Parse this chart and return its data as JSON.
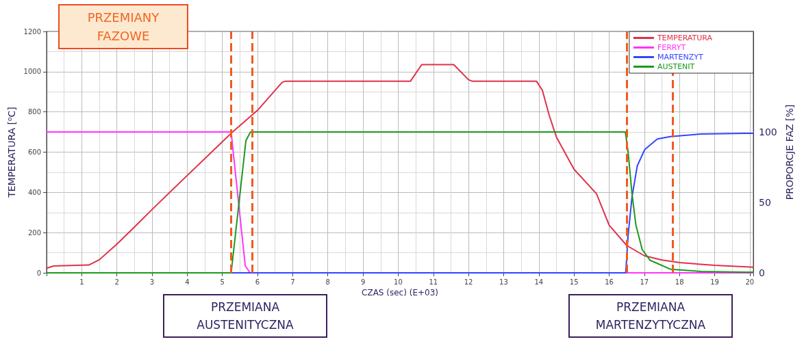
{
  "chart_data": {
    "type": "line",
    "xlabel": "CZAS (sec) (E+03)",
    "ylabel": "TEMPERATURA [$^{o}$C]",
    "y2label": "PROPORCJE FAZ [%]",
    "xlim": [
      0,
      20.1
    ],
    "xticks": [
      {
        "value": 0,
        "label": null
      },
      1,
      2,
      3,
      4,
      5,
      6,
      7,
      8,
      9,
      10,
      11,
      12,
      13,
      14,
      15,
      16,
      17,
      18,
      19,
      20
    ],
    "ylim": [
      0,
      1200
    ],
    "yticks": [
      0,
      200,
      400,
      600,
      800,
      1000,
      1200
    ],
    "y2lim": [
      0,
      171.4
    ],
    "y2ticks": [
      0,
      50,
      100
    ],
    "grid": true,
    "legend": "top right",
    "line_style": "solid",
    "marker": "none",
    "series": [
      {
        "name": "TEMPERATURA",
        "color": "#e0304a",
        "x": [
          0,
          0.2,
          0.5,
          1.2,
          1.5,
          2,
          2.5,
          3,
          4,
          5,
          5.25,
          6,
          6.7,
          6.8,
          10.35,
          10.67,
          11.58,
          12.0,
          12.1,
          13.93,
          14.1,
          14.3,
          14.5,
          15,
          15.64,
          16,
          16.5,
          17,
          17.5,
          18,
          19,
          20.1
        ],
        "values": [
          23,
          34,
          36,
          39,
          65,
          143,
          228,
          315,
          484,
          652,
          694,
          808,
          947,
          953,
          953,
          1035,
          1035,
          960,
          953,
          953,
          908,
          780,
          675,
          515,
          393,
          237,
          136,
          85,
          64,
          51,
          37,
          28
        ]
      },
      {
        "name": "FERRYT",
        "color": "#ff33ff",
        "axis": "y2",
        "x": [
          0,
          5.25,
          5.32,
          5.65,
          5.79,
          20.1
        ],
        "values": [
          100,
          100,
          83,
          5,
          0,
          0
        ]
      },
      {
        "name": "MARTENZYT",
        "color": "#3344ff",
        "axis": "y2",
        "x": [
          0,
          16.47,
          16.54,
          16.65,
          16.8,
          17.01,
          17.37,
          17.74,
          18.61,
          19.84,
          20.1
        ],
        "values": [
          0,
          0,
          27,
          54,
          76,
          87.5,
          95,
          96.7,
          98.6,
          99,
          99
        ]
      },
      {
        "name": "AUSTENIT",
        "color": "#1a9a1a",
        "axis": "y2",
        "x": [
          0,
          5.25,
          5.67,
          5.8,
          16.46,
          16.54,
          16.65,
          16.76,
          16.94,
          17.16,
          17.74,
          18.61,
          19.84,
          20.1
        ],
        "values": [
          0,
          0,
          94,
          100,
          100,
          85.7,
          56,
          34,
          16.5,
          9,
          2.6,
          1,
          0.5,
          0.5
        ]
      }
    ],
    "ref_lines": [
      {
        "axis": "x",
        "value": 5.25,
        "color": "#f05a1e",
        "line_style": "dashed"
      },
      {
        "axis": "x",
        "value": 5.85,
        "color": "#f05a1e",
        "line_style": "dashed"
      },
      {
        "axis": "x",
        "value": 16.5,
        "color": "#f05a1e",
        "line_style": "dashed"
      },
      {
        "axis": "x",
        "value": 17.8,
        "color": "#f05a1e",
        "line_style": "dashed"
      }
    ],
    "annotations": [
      "PRZEMIANY\nFAZOWE",
      "PRZEMIANA\nAUSTENITYCZNA",
      "PRZEMIANA\nMARTENZYTYCZNA"
    ]
  }
}
